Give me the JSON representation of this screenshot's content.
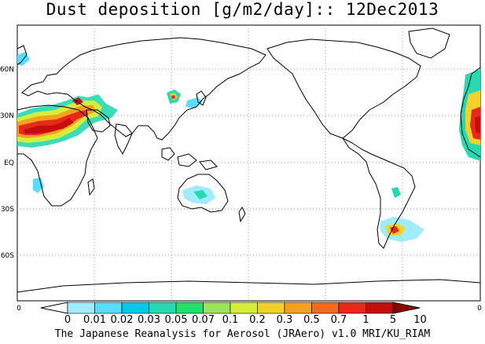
{
  "title": "Dust deposition [g/m2/day]:: 12Dec2013",
  "footer": "The Japanese Reanalysis for Aerosol (JRAero) v1.0 MRI/KU_RIAM",
  "lat_labels": [
    "60N",
    "30N",
    "EQ",
    "30S",
    "60S"
  ],
  "axis_edge_labels": {
    "left": "0",
    "right": "0"
  },
  "colorbar": {
    "labels": [
      "0",
      "0.01",
      "0.02",
      "0.03",
      "0.05",
      "0.07",
      "0.1",
      "0.2",
      "0.3",
      "0.5",
      "0.7",
      "1",
      "5",
      "10"
    ],
    "colors": [
      "#ffffff",
      "#a0ecff",
      "#58dcff",
      "#00c8e6",
      "#26d9b0",
      "#20e06a",
      "#9be35a",
      "#d6ee3a",
      "#f2d22a",
      "#f6a020",
      "#f26a1a",
      "#e8281a",
      "#c40e0e",
      "#900000"
    ]
  },
  "colors": {
    "land_outline": "#000000",
    "grid": "#9a9a9a",
    "frame": "#000000"
  }
}
